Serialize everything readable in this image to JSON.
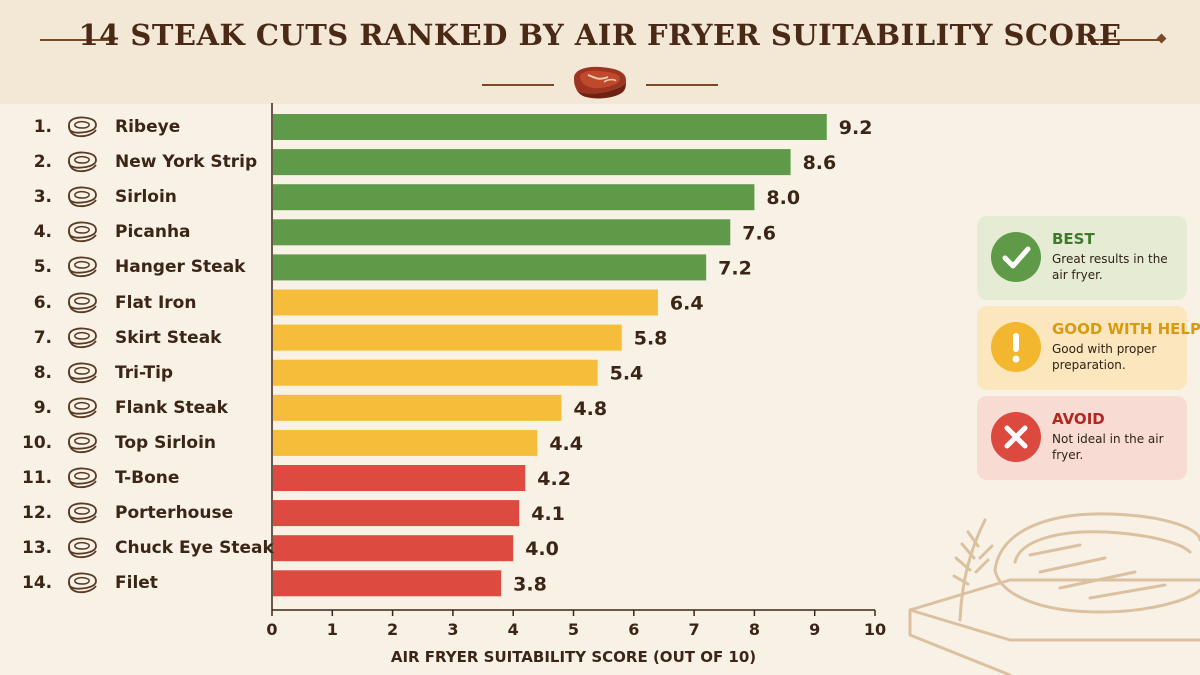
{
  "title": "14 STEAK CUTS RANKED BY AIR FRYER SUITABILITY SCORE",
  "colors": {
    "best": "#5e9a47",
    "good": "#f6bd3b",
    "avoid": "#dd4a3f",
    "text": "#3b2516",
    "background": "#f8f1e6"
  },
  "chart_data": {
    "type": "bar",
    "orientation": "horizontal",
    "categories": [
      "Ribeye",
      "New York Strip",
      "Sirloin",
      "Picanha",
      "Hanger Steak",
      "Flat Iron",
      "Skirt Steak",
      "Tri-Tip",
      "Flank Steak",
      "Top Sirloin",
      "T-Bone",
      "Porterhouse",
      "Chuck Eye Steak",
      "Filet"
    ],
    "ranks": [
      "1.",
      "2.",
      "3.",
      "4.",
      "5.",
      "6.",
      "7.",
      "8.",
      "9.",
      "10.",
      "11.",
      "12.",
      "13.",
      "14."
    ],
    "values": [
      9.2,
      8.6,
      8.0,
      7.6,
      7.2,
      6.4,
      5.8,
      5.4,
      4.8,
      4.4,
      4.2,
      4.1,
      4.0,
      3.8
    ],
    "value_labels": [
      "9.2",
      "8.6",
      "8.0",
      "7.6",
      "7.2",
      "6.4",
      "5.8",
      "5.4",
      "4.8",
      "4.4",
      "4.2",
      "4.1",
      "4.0",
      "3.8"
    ],
    "groups": [
      "best",
      "best",
      "best",
      "best",
      "best",
      "good",
      "good",
      "good",
      "good",
      "good",
      "avoid",
      "avoid",
      "avoid",
      "avoid"
    ],
    "xlabel": "AIR FRYER SUITABILITY SCORE (OUT OF 10)",
    "xlim": [
      0,
      10
    ],
    "xticks": [
      "0",
      "1",
      "2",
      "3",
      "4",
      "5",
      "6",
      "7",
      "8",
      "9",
      "10"
    ],
    "grid": false,
    "legend_position": "right"
  },
  "legend": [
    {
      "key": "best",
      "title": "BEST",
      "desc": "Great results in the air fryer.",
      "icon": "check-icon",
      "title_color": "#3f7a2c",
      "bg": "#e6ebd3",
      "circle": "#5e9a47"
    },
    {
      "key": "good",
      "title": "GOOD WITH HELP",
      "desc": "Good with proper preparation.",
      "icon": "exclamation-icon",
      "title_color": "#d99a12",
      "bg": "#fbe6bd",
      "circle": "#f3b72f"
    },
    {
      "key": "avoid",
      "title": "AVOID",
      "desc": "Not ideal in the air fryer.",
      "icon": "x-icon",
      "title_color": "#b2271f",
      "bg": "#f8dcd3",
      "circle": "#dc4a3f"
    }
  ]
}
